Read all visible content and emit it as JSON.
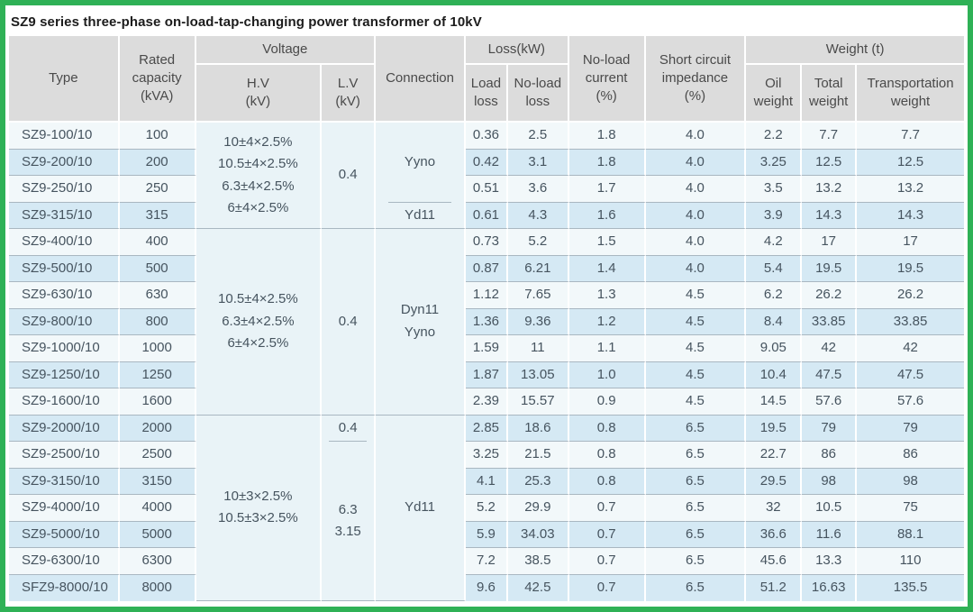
{
  "title": "SZ9 series three-phase on-load-tap-changing power transformer of 10kV",
  "colors": {
    "frame_border_green": "#2fb156",
    "header_bg": "#dcdcdc",
    "row_pale": "#f2f8fa",
    "row_blue": "#d5e9f4",
    "merged_cell_bg": "#e9f3f7",
    "grid_line": "#a9b7c1",
    "body_text": "#46545f"
  },
  "header": {
    "type": "Type",
    "rated_capacity": [
      "Rated",
      "capacity",
      "(kVA)"
    ],
    "voltage_group": "Voltage",
    "hv": [
      "H.V",
      "(kV)"
    ],
    "lv": [
      "L.V",
      "(kV)"
    ],
    "connection": "Connection",
    "loss_group": "Loss(kW)",
    "load_loss": [
      "Load",
      "loss"
    ],
    "no_load_loss": [
      "No-load",
      "loss"
    ],
    "no_load_current": [
      "No-load",
      "current",
      "(%)"
    ],
    "short_circuit_impedance": [
      "Short circuit",
      "impedance",
      "(%)"
    ],
    "weight_group": "Weight (t)",
    "oil_weight": [
      "Oil",
      "weight"
    ],
    "total_weight": [
      "Total",
      "weight"
    ],
    "transportation_weight": [
      "Transportation",
      "weight"
    ]
  },
  "table": {
    "rows": [
      {
        "type": "SZ9-100/10",
        "capacity": "100",
        "load_loss": "0.36",
        "no_load_loss": "2.5",
        "current": "1.8",
        "impedance": "4.0",
        "oil": "2.2",
        "total": "7.7",
        "transport": "7.7"
      },
      {
        "type": "SZ9-200/10",
        "capacity": "200",
        "load_loss": "0.42",
        "no_load_loss": "3.1",
        "current": "1.8",
        "impedance": "4.0",
        "oil": "3.25",
        "total": "12.5",
        "transport": "12.5"
      },
      {
        "type": "SZ9-250/10",
        "capacity": "250",
        "load_loss": "0.51",
        "no_load_loss": "3.6",
        "current": "1.7",
        "impedance": "4.0",
        "oil": "3.5",
        "total": "13.2",
        "transport": "13.2"
      },
      {
        "type": "SZ9-315/10",
        "capacity": "315",
        "load_loss": "0.61",
        "no_load_loss": "4.3",
        "current": "1.6",
        "impedance": "4.0",
        "oil": "3.9",
        "total": "14.3",
        "transport": "14.3"
      },
      {
        "type": "SZ9-400/10",
        "capacity": "400",
        "load_loss": "0.73",
        "no_load_loss": "5.2",
        "current": "1.5",
        "impedance": "4.0",
        "oil": "4.2",
        "total": "17",
        "transport": "17"
      },
      {
        "type": "SZ9-500/10",
        "capacity": "500",
        "load_loss": "0.87",
        "no_load_loss": "6.21",
        "current": "1.4",
        "impedance": "4.0",
        "oil": "5.4",
        "total": "19.5",
        "transport": "19.5"
      },
      {
        "type": "SZ9-630/10",
        "capacity": "630",
        "load_loss": "1.12",
        "no_load_loss": "7.65",
        "current": "1.3",
        "impedance": "4.5",
        "oil": "6.2",
        "total": "26.2",
        "transport": "26.2"
      },
      {
        "type": "SZ9-800/10",
        "capacity": "800",
        "load_loss": "1.36",
        "no_load_loss": "9.36",
        "current": "1.2",
        "impedance": "4.5",
        "oil": "8.4",
        "total": "33.85",
        "transport": "33.85"
      },
      {
        "type": "SZ9-1000/10",
        "capacity": "1000",
        "load_loss": "1.59",
        "no_load_loss": "11",
        "current": "1.1",
        "impedance": "4.5",
        "oil": "9.05",
        "total": "42",
        "transport": "42"
      },
      {
        "type": "SZ9-1250/10",
        "capacity": "1250",
        "load_loss": "1.87",
        "no_load_loss": "13.05",
        "current": "1.0",
        "impedance": "4.5",
        "oil": "10.4",
        "total": "47.5",
        "transport": "47.5"
      },
      {
        "type": "SZ9-1600/10",
        "capacity": "1600",
        "load_loss": "2.39",
        "no_load_loss": "15.57",
        "current": "0.9",
        "impedance": "4.5",
        "oil": "14.5",
        "total": "57.6",
        "transport": "57.6"
      },
      {
        "type": "SZ9-2000/10",
        "capacity": "2000",
        "load_loss": "2.85",
        "no_load_loss": "18.6",
        "current": "0.8",
        "impedance": "6.5",
        "oil": "19.5",
        "total": "79",
        "transport": "79"
      },
      {
        "type": "SZ9-2500/10",
        "capacity": "2500",
        "load_loss": "3.25",
        "no_load_loss": "21.5",
        "current": "0.8",
        "impedance": "6.5",
        "oil": "22.7",
        "total": "86",
        "transport": "86"
      },
      {
        "type": "SZ9-3150/10",
        "capacity": "3150",
        "load_loss": "4.1",
        "no_load_loss": "25.3",
        "current": "0.8",
        "impedance": "6.5",
        "oil": "29.5",
        "total": "98",
        "transport": "98"
      },
      {
        "type": "SZ9-4000/10",
        "capacity": "4000",
        "load_loss": "5.2",
        "no_load_loss": "29.9",
        "current": "0.7",
        "impedance": "6.5",
        "oil": "32",
        "total": "10.5",
        "transport": "75"
      },
      {
        "type": "SZ9-5000/10",
        "capacity": "5000",
        "load_loss": "5.9",
        "no_load_loss": "34.03",
        "current": "0.7",
        "impedance": "6.5",
        "oil": "36.6",
        "total": "11.6",
        "transport": "88.1"
      },
      {
        "type": "SZ9-6300/10",
        "capacity": "6300",
        "load_loss": "7.2",
        "no_load_loss": "38.5",
        "current": "0.7",
        "impedance": "6.5",
        "oil": "45.6",
        "total": "13.3",
        "transport": "110"
      },
      {
        "type": "SFZ9-8000/10",
        "capacity": "8000",
        "load_loss": "9.6",
        "no_load_loss": "42.5",
        "current": "0.7",
        "impedance": "6.5",
        "oil": "51.2",
        "total": "16.63",
        "transport": "135.5"
      }
    ],
    "merged": {
      "hv": [
        {
          "from": 0,
          "span": 4,
          "lines": [
            "10±4×2.5%",
            "10.5±4×2.5%",
            "6.3±4×2.5%",
            "6±4×2.5%"
          ]
        },
        {
          "from": 4,
          "span": 7,
          "lines": [
            "10.5±4×2.5%",
            "6.3±4×2.5%",
            "6±4×2.5%"
          ]
        },
        {
          "from": 11,
          "span": 7,
          "lines": [
            "10±3×2.5%",
            "10.5±3×2.5%"
          ]
        }
      ],
      "lv": [
        {
          "from": 0,
          "span": 4,
          "lines": [
            "0.4"
          ]
        },
        {
          "from": 4,
          "span": 7,
          "lines": [
            "0.4"
          ]
        },
        {
          "from": 11,
          "span": 1,
          "lines": [
            "0.4"
          ],
          "partial_divider": true
        },
        {
          "from": 12,
          "span": 6,
          "lines": [
            "6.3",
            "3.15"
          ]
        }
      ],
      "connection": [
        {
          "from": 0,
          "span": 3,
          "lines": [
            "Yyno"
          ],
          "partial_divider": true
        },
        {
          "from": 3,
          "span": 1,
          "lines": [
            "Yd11"
          ]
        },
        {
          "from": 4,
          "span": 7,
          "lines": [
            "Dyn11",
            "Yyno"
          ]
        },
        {
          "from": 11,
          "span": 7,
          "lines": [
            "Yd11"
          ]
        }
      ]
    }
  }
}
